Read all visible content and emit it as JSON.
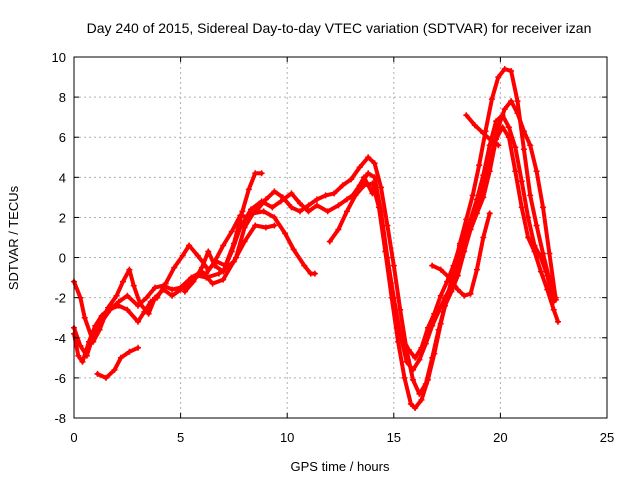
{
  "chart_data": {
    "type": "scatter",
    "title": "Day 240 of 2015, Sidereal Day-to-day VTEC variation (SDTVAR) for receiver izan",
    "xlabel": "GPS time / hours",
    "ylabel": "SDTVAR / TECUs",
    "xlim": [
      0,
      25
    ],
    "ylim": [
      -8,
      10
    ],
    "xticks": [
      "0",
      "5",
      "10",
      "15",
      "20",
      "25"
    ],
    "yticks": [
      "-8",
      "-6",
      "-4",
      "-2",
      "0",
      "2",
      "4",
      "6",
      "8",
      "10"
    ],
    "grid": true,
    "marker_color": "#ff0000",
    "series": [
      {
        "points": [
          [
            0.0,
            -1.2
          ],
          [
            0.3,
            -2.0
          ],
          [
            0.5,
            -3.0
          ],
          [
            0.9,
            -4.2
          ],
          [
            1.2,
            -3.6
          ],
          [
            1.6,
            -2.5
          ],
          [
            2.0,
            -1.9
          ],
          [
            2.3,
            -1.2
          ],
          [
            2.6,
            -0.6
          ],
          [
            2.8,
            -1.4
          ],
          [
            3.1,
            -2.3
          ],
          [
            3.5,
            -2.8
          ],
          [
            3.8,
            -2.0
          ],
          [
            4.2,
            -1.6
          ],
          [
            4.6,
            -1.9
          ],
          [
            5.0,
            -1.6
          ],
          [
            5.4,
            -1.3
          ],
          [
            5.8,
            -0.9
          ],
          [
            6.2,
            -1.0
          ],
          [
            6.8,
            -0.8
          ],
          [
            7.5,
            -0.2
          ],
          [
            8.0,
            0.8
          ],
          [
            8.5,
            1.6
          ],
          [
            9.0,
            1.5
          ],
          [
            9.4,
            1.6
          ]
        ]
      },
      {
        "points": [
          [
            0.0,
            -3.5
          ],
          [
            0.3,
            -4.4
          ],
          [
            0.6,
            -4.9
          ],
          [
            0.9,
            -3.9
          ],
          [
            1.3,
            -3.2
          ],
          [
            1.7,
            -2.6
          ],
          [
            2.1,
            -2.2
          ],
          [
            2.5,
            -1.9
          ],
          [
            3.0,
            -2.4
          ],
          [
            3.4,
            -2.0
          ],
          [
            3.8,
            -1.5
          ],
          [
            4.2,
            -1.4
          ],
          [
            4.6,
            -1.6
          ],
          [
            5.0,
            -1.5
          ],
          [
            5.5,
            -1.0
          ],
          [
            6.0,
            -0.7
          ],
          [
            6.5,
            -1.3
          ],
          [
            7.0,
            -1.1
          ],
          [
            7.6,
            0.0
          ],
          [
            8.0,
            1.5
          ],
          [
            8.4,
            2.2
          ],
          [
            8.9,
            2.3
          ],
          [
            9.4,
            2.0
          ],
          [
            9.9,
            1.2
          ],
          [
            10.3,
            0.4
          ],
          [
            10.8,
            -0.4
          ],
          [
            11.1,
            -0.8
          ],
          [
            11.3,
            -0.8
          ]
        ]
      },
      {
        "points": [
          [
            0.0,
            -3.8
          ],
          [
            0.2,
            -4.9
          ],
          [
            0.4,
            -5.2
          ],
          [
            0.7,
            -4.2
          ],
          [
            1.0,
            -3.4
          ],
          [
            1.3,
            -2.9
          ],
          [
            1.6,
            -2.6
          ],
          [
            2.1,
            -2.4
          ],
          [
            2.5,
            -2.6
          ],
          [
            3.0,
            -3.2
          ],
          [
            3.3,
            -2.7
          ],
          [
            3.6,
            -2.2
          ],
          [
            3.9,
            -2.0
          ],
          [
            4.3,
            -1.3
          ],
          [
            4.7,
            -0.5
          ],
          [
            5.1,
            0.1
          ],
          [
            5.4,
            0.6
          ],
          [
            5.8,
            0.1
          ],
          [
            6.3,
            -0.6
          ],
          [
            6.7,
            -0.2
          ],
          [
            7.1,
            -0.4
          ],
          [
            7.5,
            0.7
          ],
          [
            7.9,
            2.3
          ],
          [
            8.2,
            3.4
          ],
          [
            8.5,
            4.2
          ],
          [
            8.8,
            4.2
          ]
        ]
      },
      {
        "points": [
          [
            1.1,
            -5.8
          ],
          [
            1.5,
            -6.0
          ],
          [
            1.9,
            -5.6
          ],
          [
            2.2,
            -5.0
          ],
          [
            2.6,
            -4.7
          ],
          [
            3.0,
            -4.5
          ]
        ]
      },
      {
        "points": [
          [
            5.2,
            -1.7
          ],
          [
            5.6,
            -1.2
          ],
          [
            6.0,
            -0.5
          ],
          [
            6.3,
            0.3
          ],
          [
            6.6,
            -0.4
          ],
          [
            7.0,
            -0.7
          ],
          [
            7.4,
            0.3
          ],
          [
            7.8,
            1.5
          ],
          [
            8.3,
            2.4
          ],
          [
            8.8,
            2.8
          ],
          [
            9.3,
            2.5
          ],
          [
            9.7,
            2.8
          ],
          [
            10.2,
            3.2
          ],
          [
            10.6,
            2.7
          ],
          [
            11.0,
            2.3
          ],
          [
            11.4,
            2.6
          ],
          [
            11.9,
            2.3
          ],
          [
            12.4,
            2.6
          ],
          [
            12.8,
            2.9
          ],
          [
            13.2,
            3.2
          ],
          [
            13.6,
            4.0
          ],
          [
            14.0,
            3.2
          ]
        ]
      },
      {
        "points": [
          [
            6.2,
            -0.8
          ],
          [
            6.6,
            -0.2
          ],
          [
            7.0,
            0.6
          ],
          [
            7.4,
            1.3
          ],
          [
            7.8,
            2.1
          ],
          [
            8.2,
            2.0
          ],
          [
            8.6,
            2.4
          ],
          [
            9.0,
            2.9
          ],
          [
            9.4,
            3.3
          ],
          [
            9.8,
            3.0
          ],
          [
            10.2,
            2.5
          ],
          [
            10.6,
            2.3
          ],
          [
            11.0,
            2.6
          ],
          [
            11.4,
            2.9
          ],
          [
            11.8,
            3.1
          ],
          [
            12.2,
            3.2
          ],
          [
            12.6,
            3.6
          ],
          [
            13.0,
            3.9
          ],
          [
            13.4,
            4.5
          ],
          [
            13.8,
            5.0
          ],
          [
            14.1,
            4.7
          ],
          [
            14.4,
            3.5
          ],
          [
            14.7,
            1.6
          ],
          [
            15.0,
            -0.4
          ],
          [
            15.3,
            -2.6
          ],
          [
            15.6,
            -4.6
          ],
          [
            15.9,
            -6.1
          ],
          [
            16.2,
            -6.8
          ],
          [
            16.5,
            -6.3
          ],
          [
            16.8,
            -5.0
          ],
          [
            17.1,
            -3.6
          ],
          [
            17.4,
            -2.4
          ],
          [
            17.7,
            -1.7
          ],
          [
            18.0,
            -0.9
          ],
          [
            18.3,
            0.3
          ],
          [
            18.6,
            1.4
          ],
          [
            18.9,
            2.2
          ],
          [
            19.2,
            3.0
          ],
          [
            19.5,
            4.3
          ],
          [
            19.8,
            5.9
          ],
          [
            20.1,
            6.5
          ],
          [
            20.4,
            6.0
          ],
          [
            20.7,
            4.3
          ],
          [
            21.0,
            2.5
          ],
          [
            21.3,
            1.0
          ],
          [
            21.6,
            0.3
          ],
          [
            21.9,
            -0.7
          ],
          [
            22.2,
            -1.6
          ],
          [
            22.5,
            -2.6
          ],
          [
            22.7,
            -3.2
          ]
        ]
      },
      {
        "points": [
          [
            12.0,
            0.8
          ],
          [
            12.4,
            1.4
          ],
          [
            12.8,
            2.3
          ],
          [
            13.2,
            3.1
          ],
          [
            13.6,
            3.6
          ],
          [
            14.0,
            3.7
          ],
          [
            14.3,
            2.5
          ],
          [
            14.6,
            0.3
          ],
          [
            14.9,
            -2.0
          ],
          [
            15.2,
            -4.2
          ],
          [
            15.5,
            -6.0
          ],
          [
            15.8,
            -7.3
          ],
          [
            16.0,
            -7.5
          ],
          [
            16.3,
            -7.1
          ],
          [
            16.6,
            -6.1
          ],
          [
            16.9,
            -4.8
          ],
          [
            17.2,
            -3.3
          ],
          [
            17.5,
            -2.0
          ],
          [
            17.8,
            -0.7
          ],
          [
            18.1,
            0.7
          ],
          [
            18.4,
            1.9
          ],
          [
            18.7,
            3.1
          ],
          [
            19.0,
            4.6
          ],
          [
            19.3,
            6.3
          ],
          [
            19.6,
            7.9
          ],
          [
            19.9,
            9.0
          ],
          [
            20.2,
            9.4
          ],
          [
            20.5,
            9.3
          ],
          [
            20.8,
            7.8
          ],
          [
            21.1,
            5.4
          ],
          [
            21.4,
            3.1
          ],
          [
            21.7,
            1.6
          ],
          [
            22.0,
            0.2
          ],
          [
            22.3,
            -1.1
          ],
          [
            22.6,
            -2.0
          ]
        ]
      },
      {
        "points": [
          [
            13.0,
            3.0
          ],
          [
            13.4,
            3.6
          ],
          [
            13.8,
            4.2
          ],
          [
            14.1,
            4.0
          ],
          [
            14.4,
            2.3
          ],
          [
            14.7,
            0.0
          ],
          [
            15.0,
            -2.0
          ],
          [
            15.3,
            -3.8
          ],
          [
            15.6,
            -5.2
          ],
          [
            15.9,
            -5.6
          ],
          [
            16.2,
            -5.1
          ],
          [
            16.5,
            -4.3
          ],
          [
            16.8,
            -3.4
          ],
          [
            17.1,
            -2.7
          ],
          [
            17.4,
            -2.0
          ],
          [
            17.7,
            -1.4
          ],
          [
            18.0,
            -0.3
          ],
          [
            18.3,
            0.9
          ],
          [
            18.6,
            1.9
          ],
          [
            18.9,
            2.9
          ],
          [
            19.2,
            4.1
          ],
          [
            19.5,
            5.6
          ],
          [
            19.8,
            6.8
          ],
          [
            20.1,
            7.1
          ],
          [
            20.4,
            6.5
          ],
          [
            20.7,
            5.5
          ],
          [
            21.0,
            3.8
          ],
          [
            21.3,
            2.0
          ],
          [
            21.6,
            0.6
          ],
          [
            21.9,
            0.0
          ],
          [
            22.2,
            -0.9
          ],
          [
            22.5,
            -2.2
          ]
        ]
      },
      {
        "points": [
          [
            15.4,
            -4.0
          ],
          [
            15.7,
            -4.6
          ],
          [
            16.0,
            -5.0
          ],
          [
            16.3,
            -4.5
          ],
          [
            16.6,
            -3.5
          ],
          [
            16.9,
            -2.8
          ],
          [
            17.2,
            -1.9
          ],
          [
            17.5,
            -1.2
          ],
          [
            17.8,
            -0.4
          ],
          [
            18.1,
            0.6
          ],
          [
            18.4,
            1.4
          ],
          [
            18.7,
            2.0
          ],
          [
            19.0,
            2.8
          ],
          [
            19.3,
            3.9
          ],
          [
            19.6,
            5.2
          ],
          [
            19.9,
            6.5
          ],
          [
            20.2,
            7.4
          ],
          [
            20.5,
            7.8
          ],
          [
            20.8,
            7.2
          ],
          [
            21.1,
            6.3
          ],
          [
            21.4,
            5.6
          ],
          [
            21.7,
            4.3
          ],
          [
            22.0,
            2.5
          ],
          [
            22.3,
            0.2
          ],
          [
            22.6,
            -2.1
          ]
        ]
      },
      {
        "points": [
          [
            16.8,
            -0.4
          ],
          [
            17.2,
            -0.6
          ],
          [
            17.6,
            -1.0
          ],
          [
            18.0,
            -1.6
          ],
          [
            18.3,
            -1.9
          ],
          [
            18.6,
            -1.8
          ],
          [
            18.9,
            -0.6
          ],
          [
            19.2,
            1.0
          ],
          [
            19.5,
            2.2
          ]
        ]
      },
      {
        "points": [
          [
            18.4,
            7.1
          ],
          [
            18.8,
            6.6
          ],
          [
            19.2,
            6.2
          ],
          [
            19.6,
            5.8
          ],
          [
            19.9,
            5.6
          ]
        ]
      }
    ]
  }
}
